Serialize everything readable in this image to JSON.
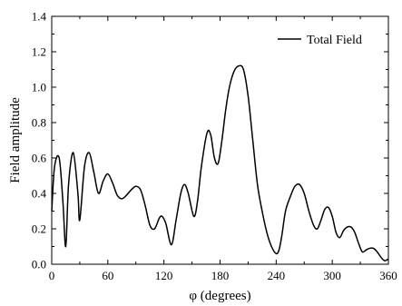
{
  "chart_data": {
    "type": "line",
    "title": "",
    "xlabel": "φ (degrees)",
    "ylabel": "Field amplitude",
    "xlim": [
      0,
      360
    ],
    "ylim": [
      0,
      1.4
    ],
    "xticks": [
      0,
      60,
      120,
      180,
      240,
      300,
      360
    ],
    "yticks": [
      0.0,
      0.2,
      0.4,
      0.6,
      0.8,
      1.0,
      1.2,
      1.4
    ],
    "xtick_labels": [
      "0",
      "60",
      "120",
      "180",
      "240",
      "300",
      "360"
    ],
    "ytick_labels": [
      "0.0",
      "0.2",
      "0.4",
      "0.6",
      "0.8",
      "1.0",
      "1.2",
      "1.4"
    ],
    "grid": false,
    "legend": {
      "position": "top-right",
      "entries": [
        "Total Field"
      ]
    },
    "series": [
      {
        "name": "Total Field",
        "color": "#000000",
        "x": [
          0,
          3,
          8,
          12,
          15,
          18,
          23,
          28,
          30,
          35,
          40,
          45,
          50,
          55,
          60,
          65,
          70,
          75,
          80,
          85,
          90,
          95,
          100,
          105,
          110,
          115,
          118,
          122,
          128,
          133,
          138,
          142,
          146,
          152,
          156,
          160,
          166,
          170,
          174,
          178,
          182,
          186,
          190,
          195,
          200,
          205,
          210,
          215,
          220,
          225,
          230,
          235,
          240,
          243,
          246,
          250,
          255,
          260,
          265,
          270,
          275,
          280,
          284,
          288,
          292,
          296,
          300,
          304,
          308,
          312,
          316,
          320,
          324,
          328,
          332,
          336,
          340,
          344,
          348,
          352,
          356,
          360
        ],
        "y": [
          0.3,
          0.55,
          0.6,
          0.35,
          0.1,
          0.45,
          0.63,
          0.4,
          0.25,
          0.55,
          0.63,
          0.52,
          0.4,
          0.47,
          0.51,
          0.46,
          0.39,
          0.37,
          0.39,
          0.42,
          0.44,
          0.42,
          0.33,
          0.22,
          0.2,
          0.26,
          0.27,
          0.23,
          0.11,
          0.25,
          0.4,
          0.45,
          0.4,
          0.27,
          0.36,
          0.55,
          0.74,
          0.73,
          0.6,
          0.57,
          0.7,
          0.87,
          1.0,
          1.09,
          1.12,
          1.1,
          0.95,
          0.7,
          0.45,
          0.3,
          0.18,
          0.1,
          0.06,
          0.08,
          0.16,
          0.3,
          0.38,
          0.44,
          0.45,
          0.4,
          0.3,
          0.22,
          0.2,
          0.25,
          0.31,
          0.32,
          0.27,
          0.18,
          0.15,
          0.19,
          0.21,
          0.21,
          0.18,
          0.12,
          0.07,
          0.08,
          0.09,
          0.09,
          0.07,
          0.04,
          0.02,
          0.03
        ]
      }
    ]
  }
}
